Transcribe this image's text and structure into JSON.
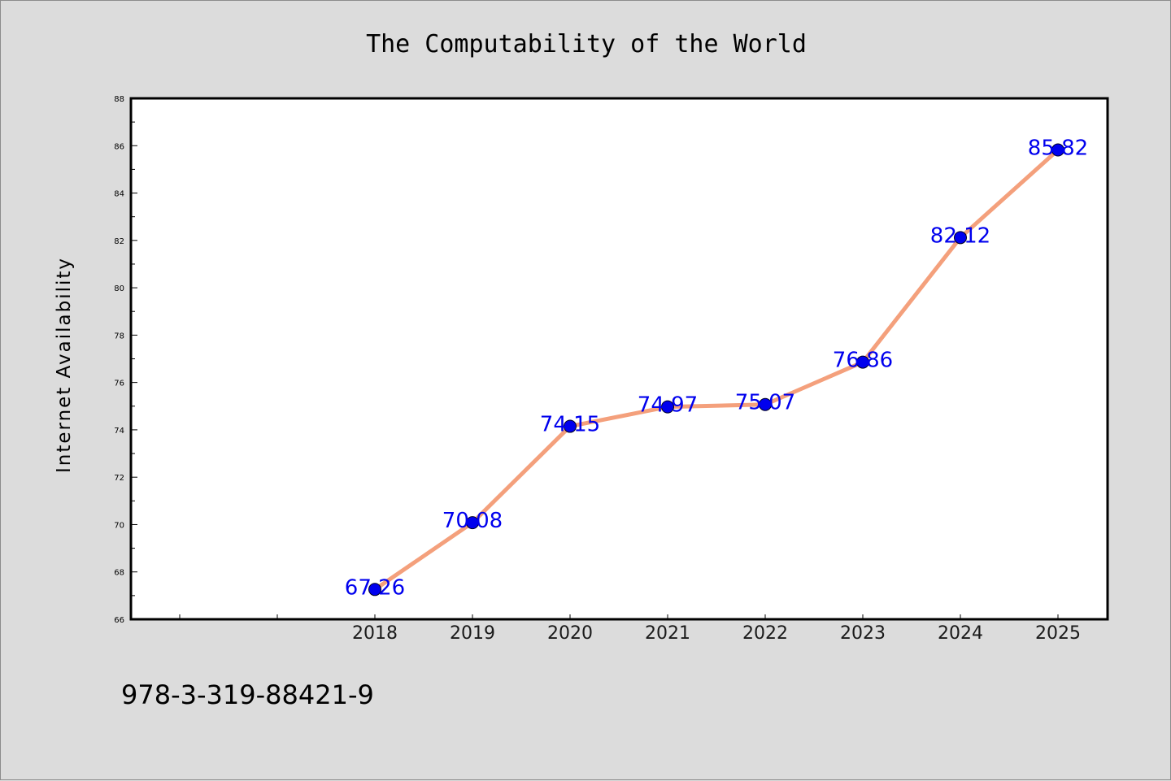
{
  "chart_data": {
    "type": "line",
    "title": "The Computability of the World",
    "xlabel": "",
    "ylabel": "Internet Availability",
    "categories": [
      "2018",
      "2019",
      "2020",
      "2021",
      "2022",
      "2023",
      "2024",
      "2025"
    ],
    "values": [
      67.26,
      70.08,
      74.15,
      74.97,
      75.07,
      76.86,
      82.12,
      85.82
    ],
    "data_labels": [
      "67.26",
      "70.08",
      "74.15",
      "74.97",
      "75.07",
      "76.86",
      "82.12",
      "85.82"
    ],
    "ylim": [
      66,
      88
    ],
    "yticks": [
      66,
      68,
      70,
      72,
      74,
      76,
      78,
      80,
      82,
      84,
      86,
      88
    ],
    "grid": false,
    "colors": {
      "line": "#f4a07c",
      "marker": "#0000ee",
      "label": "#0000ee",
      "background": "#dcdcdc",
      "plot_area": "#ffffff"
    }
  },
  "footer_text": "978-3-319-88421-9"
}
